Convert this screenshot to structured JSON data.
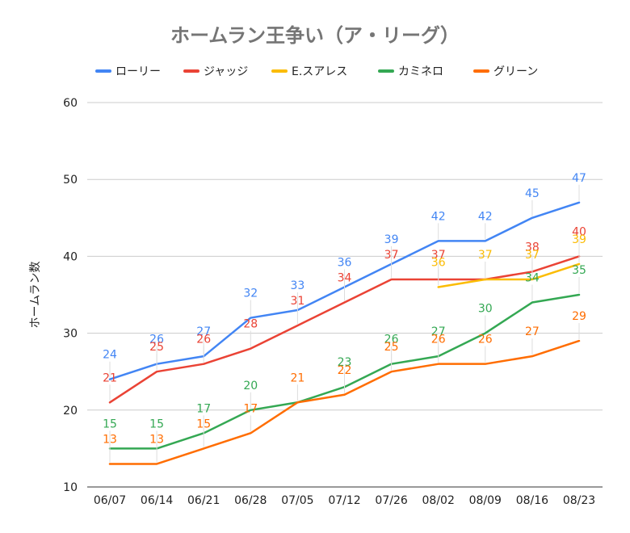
{
  "chart_data": {
    "type": "line",
    "title": "ホームラン王争い（ア・リーグ）",
    "xlabel": "",
    "ylabel": "ホームラン数",
    "ylim": [
      10,
      60
    ],
    "yticks": [
      10,
      20,
      30,
      40,
      50,
      60
    ],
    "grid": true,
    "legend_position": "top",
    "categories": [
      "06/07",
      "06/14",
      "06/21",
      "06/28",
      "07/05",
      "07/12",
      "07/26",
      "08/02",
      "08/09",
      "08/16",
      "08/23"
    ],
    "series": [
      {
        "name": "ローリー",
        "color": "#4285f4",
        "values": [
          24,
          26,
          27,
          32,
          33,
          36,
          39,
          42,
          42,
          45,
          47
        ],
        "labels": [
          "24",
          "26",
          "27",
          "32",
          "33",
          "36",
          "39",
          "42",
          "42",
          "45",
          "47"
        ]
      },
      {
        "name": "ジャッジ",
        "color": "#ea4335",
        "values": [
          21,
          25,
          26,
          28,
          31,
          34,
          37,
          37,
          37,
          38,
          40
        ],
        "labels": [
          "21",
          "25",
          "26",
          "28",
          "31",
          "34",
          "37",
          "37",
          "",
          "38",
          "40"
        ]
      },
      {
        "name": "E.スアレス",
        "color": "#fbbc04",
        "values": [
          null,
          null,
          null,
          null,
          null,
          null,
          null,
          36,
          37,
          37,
          39
        ],
        "labels": [
          "",
          "",
          "",
          "",
          "",
          "",
          "",
          "36",
          "37",
          "37",
          "39"
        ]
      },
      {
        "name": "カミネロ",
        "color": "#34a853",
        "values": [
          15,
          15,
          17,
          20,
          21,
          23,
          26,
          27,
          30,
          34,
          35
        ],
        "labels": [
          "15",
          "15",
          "17",
          "20",
          "",
          "23",
          "26",
          "27",
          "30",
          "34",
          "35"
        ]
      },
      {
        "name": "グリーン",
        "color": "#ff6d01",
        "values": [
          13,
          13,
          15,
          17,
          21,
          22,
          25,
          26,
          26,
          27,
          29
        ],
        "labels": [
          "13",
          "13",
          "15",
          "17",
          "21",
          "22",
          "25",
          "26",
          "26",
          "27",
          "29"
        ]
      }
    ]
  }
}
